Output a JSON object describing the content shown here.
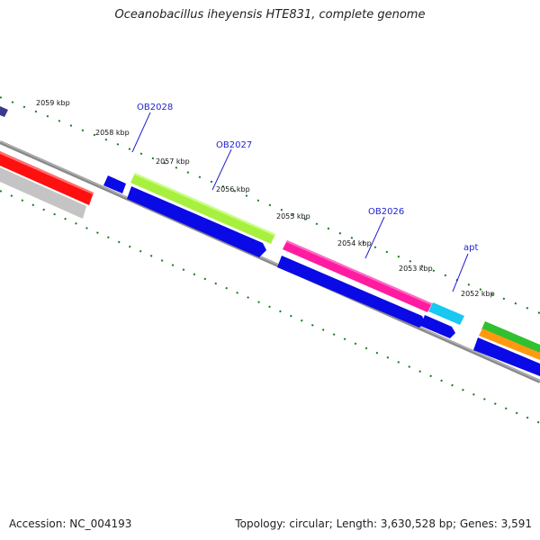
{
  "title": "Oceanobacillus iheyensis HTE831, complete genome",
  "footer": {
    "accession": "Accession: NC_004193",
    "topology": "Topology: circular; Length: 3,630,528 bp; Genes: 3,591"
  },
  "ticks": [
    {
      "label": "2059 kbp",
      "kb": 2059
    },
    {
      "label": "2058 kbp",
      "kb": 2058
    },
    {
      "label": "2057 kbp",
      "kb": 2057
    },
    {
      "label": "2056 kbp",
      "kb": 2056
    },
    {
      "label": "2055 kbp",
      "kb": 2055
    },
    {
      "label": "2054 kbp",
      "kb": 2054
    },
    {
      "label": "2053 kbp",
      "kb": 2053
    },
    {
      "label": "2052 kbp",
      "kb": 2052
    }
  ],
  "gene_labels": [
    "OB2028",
    "OB2027",
    "OB2026",
    "apt"
  ],
  "colors": {
    "blue": "#0a0ae6",
    "red": "#ff1010",
    "grey": "#c4c4c4",
    "lime": "#a8f040",
    "pink": "#ff1ca0",
    "cyan": "#18c8f0",
    "green": "#30c030",
    "orange": "#ff9a10",
    "navy": "#3a3a8a",
    "backbone": "#8a8a8a",
    "tick": "#1a7a1a"
  }
}
